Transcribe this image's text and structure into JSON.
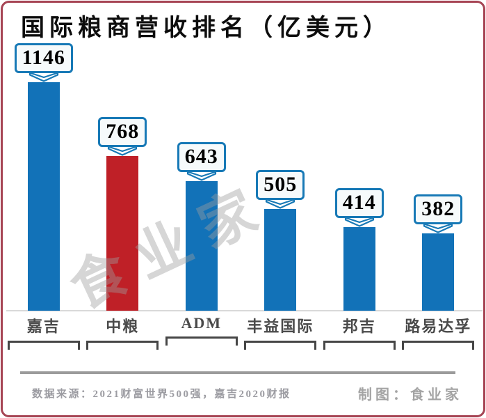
{
  "title": "国际粮商营收排名（亿美元）",
  "watermark": "食业家",
  "footer": {
    "source": "数据来源：2021财富世界500强，嘉吉2020财报",
    "credit": "制图：食业家"
  },
  "colors": {
    "bar_blue": "#1272b8",
    "bar_red": "#bf2027",
    "box_border": "#1779b6",
    "box_background": "#f6fafb",
    "frame_border": "#a64454",
    "label_gray": "#4a4a4a",
    "footer_gray": "#9c9ca2"
  },
  "chart_data": {
    "type": "bar",
    "title": "国际粮商营收排名（亿美元）",
    "unit": "亿美元",
    "categories": [
      "嘉吉",
      "中粮",
      "ADM",
      "丰益国际",
      "邦吉",
      "路易达孚"
    ],
    "values": [
      1146,
      768,
      643,
      505,
      414,
      382
    ],
    "bar_colors": [
      "#1272b8",
      "#bf2027",
      "#1272b8",
      "#1272b8",
      "#1272b8",
      "#1272b8"
    ],
    "highlight_index": 1,
    "value_labels": true,
    "grid": false,
    "legend": false,
    "ylim": [
      0,
      1200
    ],
    "xlabel": "",
    "ylabel": ""
  }
}
